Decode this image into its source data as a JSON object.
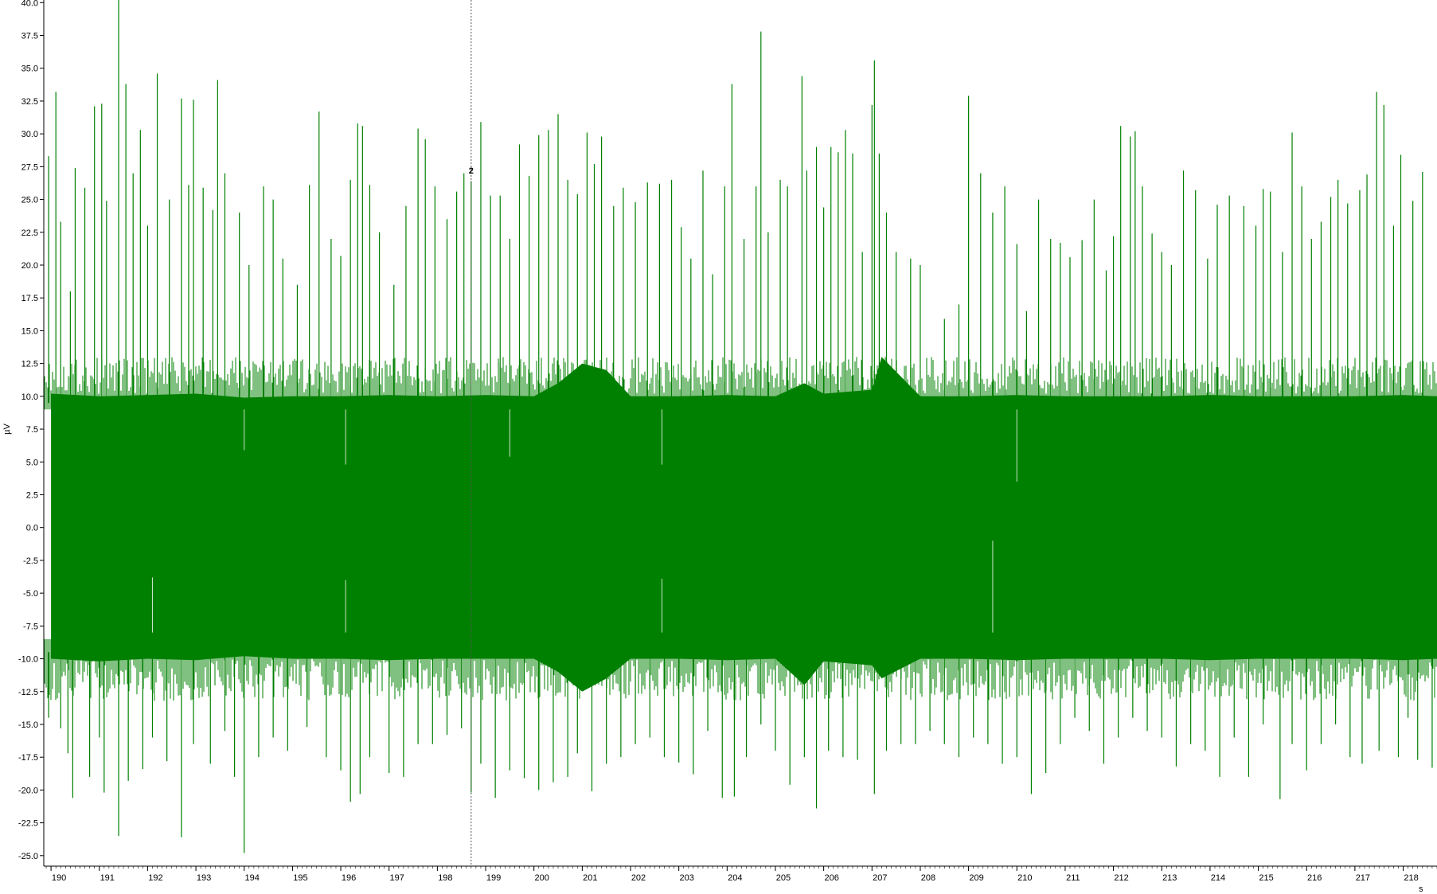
{
  "chart_data": {
    "type": "line",
    "title": "",
    "ylabel": "µV",
    "xlabel": "s",
    "xlim": [
      189.85,
      218.7
    ],
    "ylim": [
      -25.8,
      40.2
    ],
    "x_ticks": [
      "190",
      "191",
      "192",
      "193",
      "194",
      "195",
      "196",
      "197",
      "198",
      "199",
      "200",
      "201",
      "202",
      "203",
      "204",
      "205",
      "206",
      "207",
      "208",
      "209",
      "210",
      "211",
      "212",
      "213",
      "214",
      "215",
      "216",
      "217",
      "218"
    ],
    "y_ticks": [
      "40.0",
      "37.5",
      "35.0",
      "32.5",
      "30.0",
      "27.5",
      "25.0",
      "22.5",
      "20.0",
      "17.5",
      "15.0",
      "12.5",
      "10.0",
      "7.5",
      "5.0",
      "2.5",
      "0.0",
      "-2.5",
      "-5.0",
      "-7.5",
      "-10.0",
      "-12.5",
      "-15.0",
      "-17.5",
      "-20.0",
      "-22.5",
      "-25.0"
    ],
    "series": [
      {
        "color": "#008000",
        "envelope": {
          "x": [
            190,
            191,
            192,
            193,
            194,
            195,
            196,
            197,
            198,
            199,
            200,
            200.5,
            201,
            201.5,
            202,
            203,
            204,
            205,
            205.6,
            206,
            207,
            207.2,
            208,
            209,
            210,
            211,
            212,
            213,
            214,
            215,
            216,
            217,
            218,
            218.7
          ],
          "upper": [
            10.2,
            10.0,
            10.1,
            10.2,
            9.9,
            10.0,
            10.0,
            10.1,
            10.0,
            10.1,
            10.0,
            11.0,
            12.5,
            12.0,
            10.0,
            10.0,
            10.1,
            10.0,
            11.0,
            10.2,
            10.5,
            13.0,
            10.0,
            10.0,
            10.1,
            10.0,
            10.0,
            10.0,
            10.1,
            10.0,
            10.0,
            10.0,
            10.1,
            10.0
          ],
          "lower": [
            -10.0,
            -10.2,
            -10.0,
            -10.1,
            -9.8,
            -10.0,
            -10.0,
            -10.1,
            -10.0,
            -10.0,
            -10.0,
            -11.0,
            -12.5,
            -11.5,
            -10.0,
            -10.0,
            -10.1,
            -10.0,
            -12.0,
            -10.2,
            -10.5,
            -11.5,
            -10.0,
            -10.0,
            -10.1,
            -10.0,
            -10.0,
            -10.0,
            -10.1,
            -10.0,
            -10.0,
            -10.0,
            -10.1,
            -10.0
          ]
        },
        "spikes_up": [
          [
            189.95,
            28.3
          ],
          [
            190.1,
            33.2
          ],
          [
            190.2,
            23.3
          ],
          [
            190.4,
            18.0
          ],
          [
            190.5,
            27.4
          ],
          [
            190.7,
            25.9
          ],
          [
            190.9,
            32.1
          ],
          [
            191.05,
            32.3
          ],
          [
            191.15,
            24.9
          ],
          [
            191.4,
            40.2
          ],
          [
            191.55,
            33.8
          ],
          [
            191.7,
            27.0
          ],
          [
            191.85,
            30.3
          ],
          [
            192.0,
            23.0
          ],
          [
            192.2,
            34.6
          ],
          [
            192.45,
            25.0
          ],
          [
            192.7,
            32.7
          ],
          [
            192.85,
            26.1
          ],
          [
            192.95,
            32.6
          ],
          [
            193.15,
            25.9
          ],
          [
            193.35,
            24.2
          ],
          [
            193.45,
            34.1
          ],
          [
            193.6,
            27.0
          ],
          [
            193.9,
            24.0
          ],
          [
            194.1,
            20.0
          ],
          [
            194.4,
            26.0
          ],
          [
            194.6,
            25.0
          ],
          [
            194.8,
            20.5
          ],
          [
            195.1,
            18.5
          ],
          [
            195.35,
            26.1
          ],
          [
            195.55,
            31.7
          ],
          [
            195.8,
            22.0
          ],
          [
            196.0,
            20.7
          ],
          [
            196.2,
            26.5
          ],
          [
            196.35,
            30.8
          ],
          [
            196.45,
            30.6
          ],
          [
            196.6,
            26.1
          ],
          [
            196.8,
            22.5
          ],
          [
            197.1,
            18.5
          ],
          [
            197.35,
            24.5
          ],
          [
            197.6,
            30.4
          ],
          [
            197.75,
            29.6
          ],
          [
            197.95,
            26.0
          ],
          [
            198.2,
            23.5
          ],
          [
            198.4,
            25.6
          ],
          [
            198.55,
            27.0
          ],
          [
            198.7,
            26.4
          ],
          [
            198.9,
            30.9
          ],
          [
            199.1,
            25.3
          ],
          [
            199.3,
            25.3
          ],
          [
            199.5,
            22.0
          ],
          [
            199.7,
            29.2
          ],
          [
            199.9,
            26.8
          ],
          [
            200.1,
            29.9
          ],
          [
            200.3,
            30.3
          ],
          [
            200.5,
            31.5
          ],
          [
            200.7,
            26.5
          ],
          [
            200.9,
            25.4
          ],
          [
            201.1,
            30.1
          ],
          [
            201.25,
            27.7
          ],
          [
            201.4,
            29.8
          ],
          [
            201.65,
            24.5
          ],
          [
            201.85,
            25.9
          ],
          [
            202.1,
            24.8
          ],
          [
            202.35,
            26.3
          ],
          [
            202.6,
            26.2
          ],
          [
            202.85,
            26.5
          ],
          [
            203.05,
            22.9
          ],
          [
            203.25,
            20.5
          ],
          [
            203.5,
            27.2
          ],
          [
            203.7,
            19.3
          ],
          [
            203.95,
            26.0
          ],
          [
            204.1,
            33.8
          ],
          [
            204.35,
            22.0
          ],
          [
            204.6,
            26.0
          ],
          [
            204.7,
            37.8
          ],
          [
            204.85,
            22.5
          ],
          [
            205.1,
            26.5
          ],
          [
            205.25,
            26.0
          ],
          [
            205.55,
            34.4
          ],
          [
            205.65,
            27.2
          ],
          [
            205.85,
            29.0
          ],
          [
            206.0,
            24.4
          ],
          [
            206.15,
            29.0
          ],
          [
            206.3,
            28.6
          ],
          [
            206.45,
            30.3
          ],
          [
            206.6,
            28.5
          ],
          [
            206.8,
            21.0
          ],
          [
            207.0,
            32.2
          ],
          [
            207.05,
            35.6
          ],
          [
            207.15,
            28.5
          ],
          [
            207.3,
            24.0
          ],
          [
            207.5,
            21.0
          ],
          [
            207.8,
            20.5
          ],
          [
            208.0,
            20.0
          ],
          [
            208.5,
            15.9
          ],
          [
            208.8,
            17.0
          ],
          [
            209.0,
            32.9
          ],
          [
            209.25,
            27.0
          ],
          [
            209.5,
            24.0
          ],
          [
            209.75,
            26.0
          ],
          [
            210.0,
            21.6
          ],
          [
            210.2,
            16.5
          ],
          [
            210.45,
            25.0
          ],
          [
            210.7,
            22.0
          ],
          [
            210.9,
            21.7
          ],
          [
            211.1,
            20.6
          ],
          [
            211.35,
            21.9
          ],
          [
            211.6,
            25.0
          ],
          [
            211.85,
            19.6
          ],
          [
            212.0,
            22.2
          ],
          [
            212.15,
            30.6
          ],
          [
            212.35,
            29.8
          ],
          [
            212.45,
            30.2
          ],
          [
            212.6,
            26.0
          ],
          [
            212.8,
            22.4
          ],
          [
            213.0,
            21.0
          ],
          [
            213.2,
            20.0
          ],
          [
            213.45,
            27.2
          ],
          [
            213.7,
            25.7
          ],
          [
            213.95,
            20.5
          ],
          [
            214.15,
            24.6
          ],
          [
            214.4,
            25.3
          ],
          [
            214.7,
            24.5
          ],
          [
            214.95,
            23.0
          ],
          [
            215.1,
            25.8
          ],
          [
            215.25,
            25.6
          ],
          [
            215.5,
            21.0
          ],
          [
            215.7,
            30.1
          ],
          [
            215.9,
            26.0
          ],
          [
            216.1,
            22.0
          ],
          [
            216.3,
            23.3
          ],
          [
            216.5,
            25.2
          ],
          [
            216.65,
            26.5
          ],
          [
            216.85,
            24.7
          ],
          [
            217.1,
            25.7
          ],
          [
            217.25,
            26.9
          ],
          [
            217.45,
            33.2
          ],
          [
            217.6,
            32.2
          ],
          [
            217.8,
            23.0
          ],
          [
            217.95,
            28.4
          ],
          [
            218.2,
            24.9
          ],
          [
            218.4,
            27.1
          ]
        ],
        "spikes_down": [
          [
            189.95,
            -14.5
          ],
          [
            190.2,
            -15.3
          ],
          [
            190.35,
            -17.2
          ],
          [
            190.45,
            -20.6
          ],
          [
            190.8,
            -19.0
          ],
          [
            191.0,
            -16.0
          ],
          [
            191.1,
            -20.2
          ],
          [
            191.4,
            -23.5
          ],
          [
            191.6,
            -19.3
          ],
          [
            191.9,
            -18.4
          ],
          [
            192.1,
            -16.0
          ],
          [
            192.4,
            -17.8
          ],
          [
            192.7,
            -23.6
          ],
          [
            192.95,
            -16.5
          ],
          [
            193.3,
            -18.0
          ],
          [
            193.6,
            -15.5
          ],
          [
            193.8,
            -19.0
          ],
          [
            194.0,
            -24.8
          ],
          [
            194.3,
            -17.5
          ],
          [
            194.6,
            -16.0
          ],
          [
            194.9,
            -17.0
          ],
          [
            195.3,
            -15.2
          ],
          [
            195.7,
            -17.5
          ],
          [
            196.0,
            -18.5
          ],
          [
            196.2,
            -20.9
          ],
          [
            196.4,
            -20.3
          ],
          [
            196.6,
            -17.5
          ],
          [
            197.0,
            -18.7
          ],
          [
            197.3,
            -19.0
          ],
          [
            197.6,
            -16.5
          ],
          [
            197.9,
            -16.5
          ],
          [
            198.2,
            -15.8
          ],
          [
            198.5,
            -15.3
          ],
          [
            198.7,
            -20.2
          ],
          [
            198.9,
            -18.0
          ],
          [
            199.2,
            -20.6
          ],
          [
            199.5,
            -18.5
          ],
          [
            199.8,
            -19.1
          ],
          [
            200.1,
            -20.0
          ],
          [
            200.4,
            -19.4
          ],
          [
            200.7,
            -19.0
          ],
          [
            200.9,
            -17.2
          ],
          [
            201.2,
            -20.1
          ],
          [
            201.5,
            -18.0
          ],
          [
            201.8,
            -17.5
          ],
          [
            202.1,
            -16.5
          ],
          [
            202.4,
            -16.0
          ],
          [
            202.7,
            -17.5
          ],
          [
            203.0,
            -17.9
          ],
          [
            203.3,
            -18.8
          ],
          [
            203.6,
            -15.5
          ],
          [
            203.9,
            -20.6
          ],
          [
            204.15,
            -20.5
          ],
          [
            204.4,
            -17.5
          ],
          [
            204.7,
            -15.0
          ],
          [
            205.0,
            -17.0
          ],
          [
            205.3,
            -19.6
          ],
          [
            205.6,
            -17.5
          ],
          [
            205.85,
            -21.4
          ],
          [
            206.1,
            -17.0
          ],
          [
            206.4,
            -17.5
          ],
          [
            206.7,
            -17.7
          ],
          [
            207.05,
            -20.3
          ],
          [
            207.3,
            -17.0
          ],
          [
            207.6,
            -16.5
          ],
          [
            207.9,
            -16.5
          ],
          [
            208.2,
            -15.5
          ],
          [
            208.5,
            -16.5
          ],
          [
            208.8,
            -17.5
          ],
          [
            209.1,
            -16.0
          ],
          [
            209.4,
            -16.5
          ],
          [
            209.7,
            -18.0
          ],
          [
            210.0,
            -17.5
          ],
          [
            210.3,
            -20.3
          ],
          [
            210.6,
            -18.7
          ],
          [
            210.9,
            -16.5
          ],
          [
            211.2,
            -14.5
          ],
          [
            211.5,
            -15.5
          ],
          [
            211.8,
            -18.0
          ],
          [
            212.1,
            -16.0
          ],
          [
            212.4,
            -14.5
          ],
          [
            212.7,
            -15.5
          ],
          [
            213.0,
            -16.0
          ],
          [
            213.3,
            -18.2
          ],
          [
            213.6,
            -16.5
          ],
          [
            213.9,
            -17.0
          ],
          [
            214.2,
            -19.0
          ],
          [
            214.5,
            -16.0
          ],
          [
            214.8,
            -19.0
          ],
          [
            215.1,
            -15.0
          ],
          [
            215.45,
            -20.7
          ],
          [
            215.7,
            -16.5
          ],
          [
            216.0,
            -18.5
          ],
          [
            216.3,
            -16.5
          ],
          [
            216.6,
            -15.0
          ],
          [
            216.9,
            -17.5
          ],
          [
            217.15,
            -18.0
          ],
          [
            217.5,
            -17.0
          ],
          [
            217.9,
            -17.5
          ],
          [
            218.1,
            -14.5
          ],
          [
            218.3,
            -17.7
          ],
          [
            218.6,
            -18.3
          ]
        ],
        "dips_inside": [
          [
            194.0,
            5.9
          ],
          [
            196.1,
            4.8
          ],
          [
            199.5,
            5.4
          ],
          [
            202.65,
            4.8
          ],
          [
            210.0,
            3.5
          ],
          [
            192.1,
            -3.8
          ],
          [
            196.1,
            -4.0
          ],
          [
            202.65,
            -3.9
          ],
          [
            209.5,
            -1.0
          ]
        ]
      }
    ],
    "annotations": [
      {
        "type": "cursor",
        "x": 198.7,
        "label": "2"
      }
    ],
    "grid": false,
    "legend": "none"
  }
}
